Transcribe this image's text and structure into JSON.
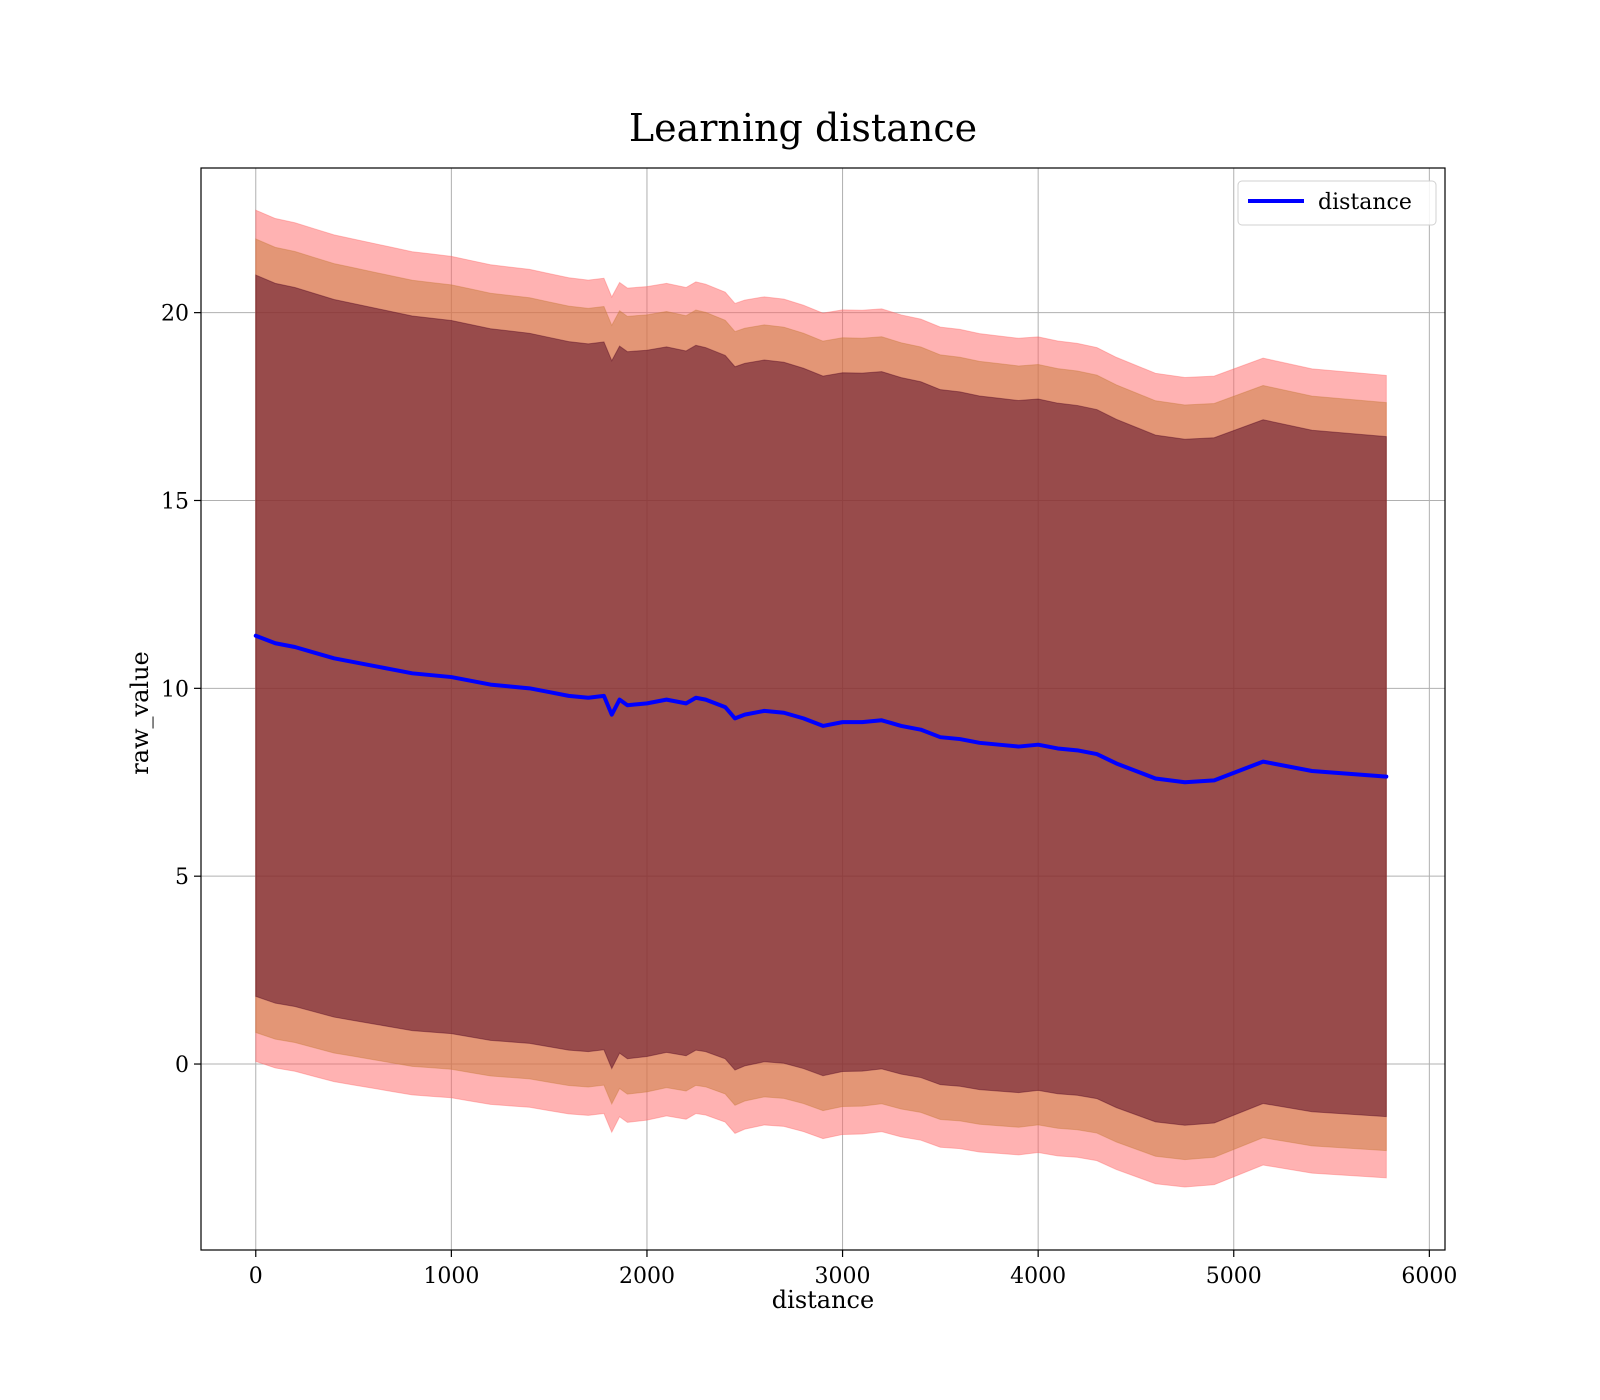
{
  "chart_data": {
    "type": "line",
    "title": "Learning distance",
    "xlabel": "distance",
    "ylabel": "raw_value",
    "xlim": [
      -280,
      6080
    ],
    "ylim": [
      -4.95,
      23.85
    ],
    "x_ticks": [
      0,
      1000,
      2000,
      3000,
      4000,
      5000,
      6000
    ],
    "y_ticks": [
      0,
      5,
      10,
      15,
      20
    ],
    "grid": true,
    "legend": {
      "position": "top-right",
      "entries": [
        "distance"
      ]
    },
    "series": [
      {
        "name": "distance",
        "color": "#0000ff",
        "x": [
          0,
          100,
          200,
          300,
          400,
          500,
          600,
          700,
          800,
          900,
          1000,
          1100,
          1200,
          1300,
          1400,
          1500,
          1600,
          1700,
          1780,
          1820,
          1860,
          1900,
          2000,
          2100,
          2200,
          2250,
          2300,
          2400,
          2450,
          2500,
          2600,
          2700,
          2800,
          2900,
          3000,
          3100,
          3200,
          3300,
          3400,
          3500,
          3600,
          3700,
          3800,
          3900,
          4000,
          4100,
          4200,
          4300,
          4400,
          4500,
          4600,
          4750,
          4900,
          5150,
          5400,
          5780
        ],
        "y": [
          11.4,
          11.2,
          11.1,
          10.95,
          10.8,
          10.7,
          10.6,
          10.5,
          10.4,
          10.35,
          10.3,
          10.2,
          10.1,
          10.05,
          10.0,
          9.9,
          9.8,
          9.75,
          9.8,
          9.3,
          9.7,
          9.55,
          9.6,
          9.7,
          9.6,
          9.75,
          9.7,
          9.5,
          9.2,
          9.3,
          9.4,
          9.35,
          9.2,
          9.0,
          9.1,
          9.1,
          9.15,
          9.0,
          8.9,
          8.7,
          8.65,
          8.55,
          8.5,
          8.45,
          8.5,
          8.4,
          8.35,
          8.25,
          8.0,
          7.8,
          7.6,
          7.5,
          7.55,
          8.05,
          7.8,
          7.65
        ],
        "halfwidth": [
          9.6,
          9.58,
          9.57,
          9.56,
          9.55,
          9.54,
          9.53,
          9.52,
          9.51,
          9.5,
          9.49,
          9.48,
          9.47,
          9.46,
          9.45,
          9.44,
          9.43,
          9.42,
          9.42,
          9.42,
          9.41,
          9.41,
          9.4,
          9.39,
          9.38,
          9.38,
          9.37,
          9.36,
          9.36,
          9.35,
          9.34,
          9.33,
          9.32,
          9.31,
          9.3,
          9.29,
          9.28,
          9.27,
          9.26,
          9.25,
          9.24,
          9.23,
          9.22,
          9.21,
          9.2,
          9.19,
          9.18,
          9.17,
          9.16,
          9.15,
          9.14,
          9.13,
          9.12,
          9.1,
          9.07,
          9.05
        ],
        "bands": [
          {
            "scale": 1.0,
            "color": "#4d0020",
            "opacity": 0.5
          },
          {
            "scale": 1.1,
            "color": "#c87a3a",
            "opacity": 0.5
          },
          {
            "scale": 1.18,
            "color": "#ff6666",
            "opacity": 0.5
          }
        ]
      }
    ]
  }
}
